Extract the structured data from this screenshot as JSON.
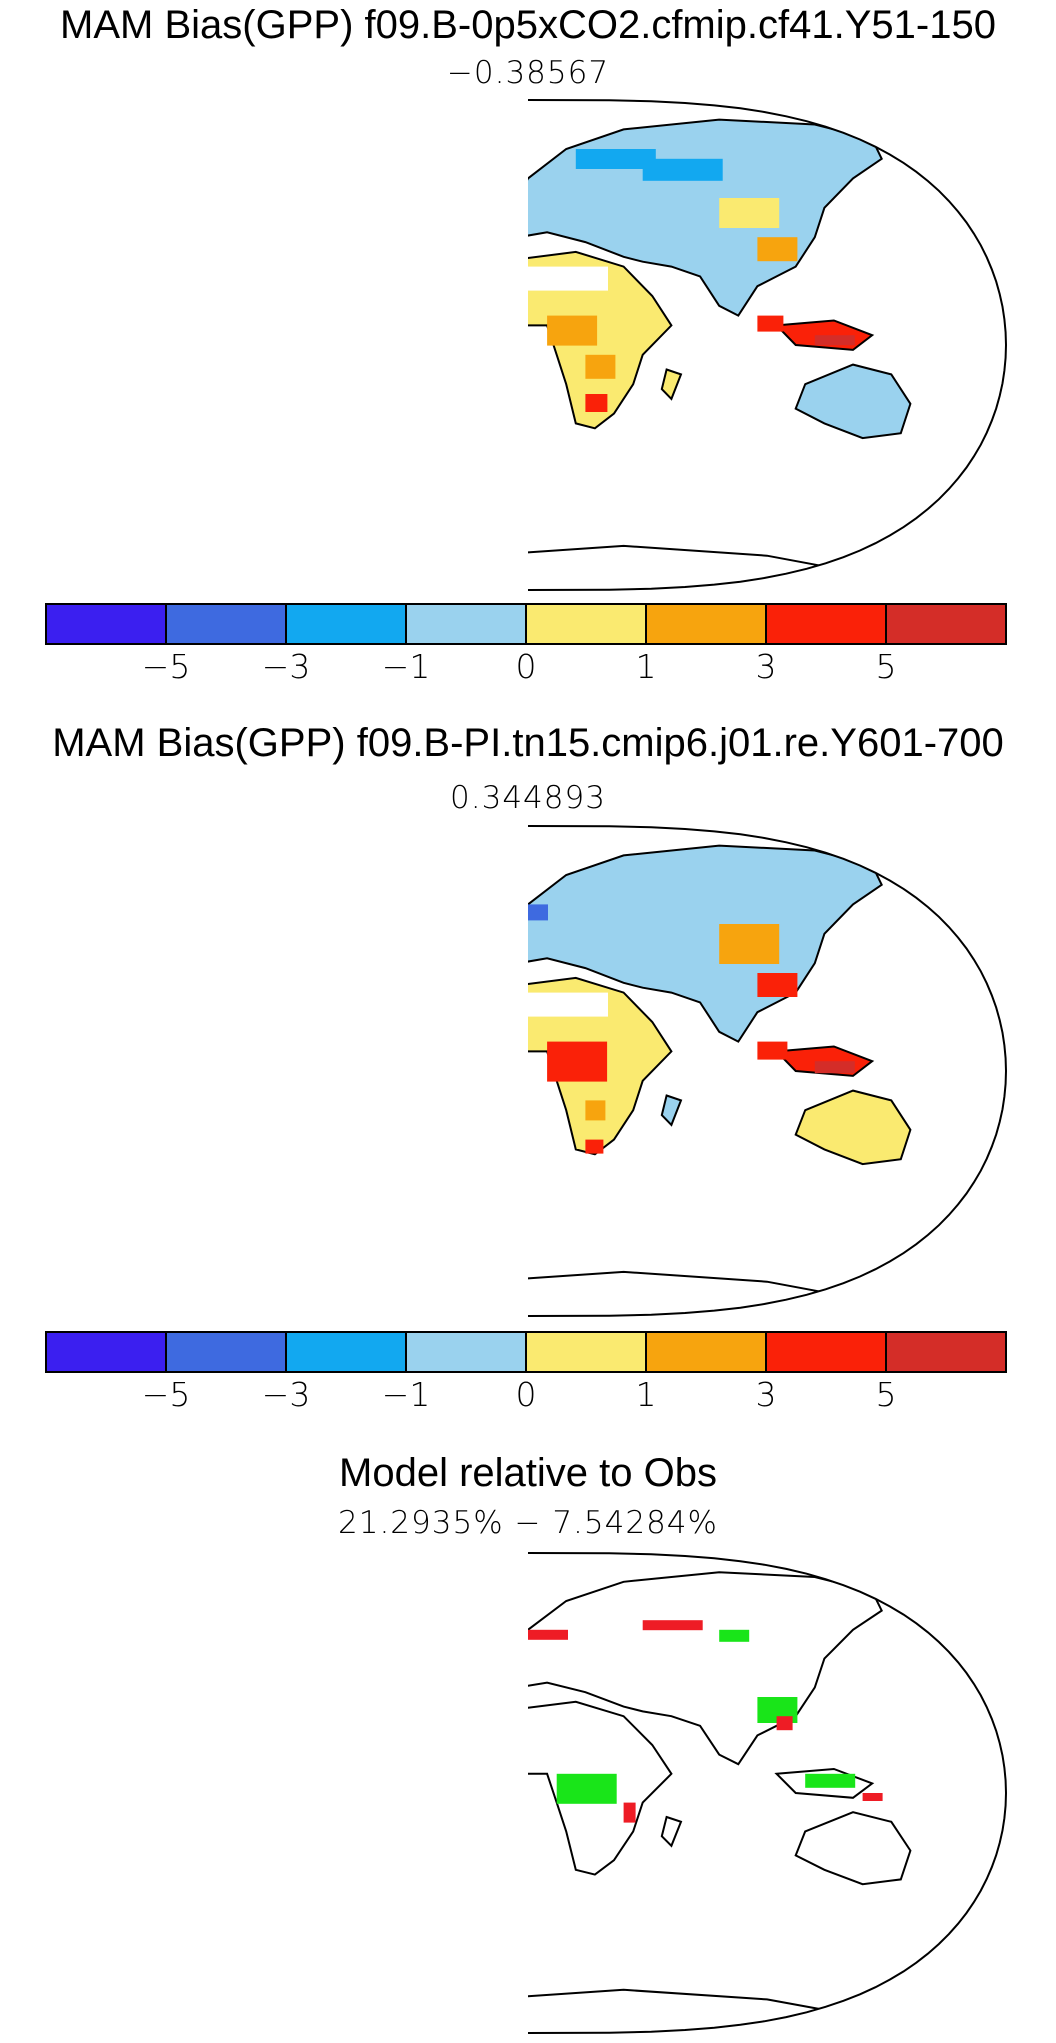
{
  "colors": {
    "c1": "#3b1ff0",
    "c2": "#3e6ae0",
    "c3": "#12a8f0",
    "c4": "#9ad2ee",
    "c5": "#faea70",
    "c6": "#f7a40e",
    "c7": "#fa2108",
    "c8": "#d42d28",
    "land": "#ffffff",
    "outline": "#000000",
    "better": "#19e519",
    "worse": "#ee1c25"
  },
  "panels": [
    {
      "title": "MAM Bias(GPP) f09.B-0p5xCO2.cfmip.cf41.Y51-150",
      "subtitle": "−0.38567"
    },
    {
      "title": "MAM Bias(GPP) f09.B-PI.tn15.cmip6.j01.re.Y601-700",
      "subtitle": "0.344893"
    },
    {
      "title": "Model relative to Obs",
      "subtitle": "21.2935% − 7.54284%"
    }
  ],
  "colorbar": {
    "labels": [
      "−5",
      "−3",
      "−1",
      "0",
      "1",
      "3",
      "5"
    ]
  },
  "chart_data": [
    {
      "type": "map",
      "title": "MAM Bias(GPP) f09.B-0p5xCO2.cfmip.cf41.Y51-150",
      "global_mean_bias": -0.38567,
      "projection": "Robinson",
      "contour_levels": [
        -5,
        -3,
        -1,
        0,
        1,
        3,
        5
      ]
    },
    {
      "type": "map",
      "title": "MAM Bias(GPP) f09.B-PI.tn15.cmip6.j01.re.Y601-700",
      "global_mean_bias": 0.344893,
      "projection": "Robinson",
      "contour_levels": [
        -5,
        -3,
        -1,
        0,
        1,
        3,
        5
      ]
    },
    {
      "type": "map",
      "title": "Model relative to Obs",
      "better_pct": 21.2935,
      "worse_pct": 7.54284,
      "projection": "Robinson"
    }
  ]
}
